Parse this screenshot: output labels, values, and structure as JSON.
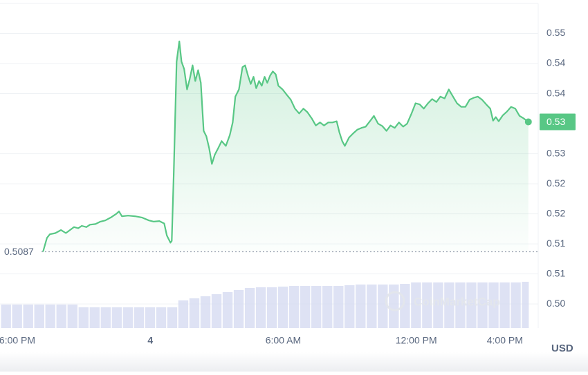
{
  "chart_data": {
    "type": "line",
    "currency": "USD",
    "watermark": "CoinMarketCap",
    "color": "#58c785",
    "current_label": "0.53",
    "reference_value": 0.5087,
    "xlim": [
      -6.78,
      17.41
    ],
    "xticks": [
      {
        "value": -6,
        "label": "6:00 PM"
      },
      {
        "value": 0,
        "label": "4"
      },
      {
        "value": 6,
        "label": "6:00 AM"
      },
      {
        "value": 12,
        "label": "12:00 PM"
      },
      {
        "value": 16,
        "label": "4:00 PM"
      }
    ],
    "ylim": [
      0.496,
      0.55
    ],
    "yticks": [
      {
        "value": 0.5,
        "label": "0.50"
      },
      {
        "value": 0.505,
        "label": "0.51"
      },
      {
        "value": 0.51,
        "label": "0.51"
      },
      {
        "value": 0.515,
        "label": "0.52"
      },
      {
        "value": 0.52,
        "label": "0.52"
      },
      {
        "value": 0.525,
        "label": "0.53"
      },
      {
        "value": 0.535,
        "label": "0.54"
      },
      {
        "value": 0.54,
        "label": "0.54"
      },
      {
        "value": 0.545,
        "label": "0.55"
      }
    ],
    "x": [
      -4.84,
      -4.66,
      -4.53,
      -4.28,
      -4.03,
      -3.81,
      -3.66,
      -3.44,
      -3.25,
      -3.09,
      -2.88,
      -2.72,
      -2.47,
      -2.25,
      -2.03,
      -1.78,
      -1.53,
      -1.41,
      -1.28,
      -1.0,
      -0.69,
      -0.38,
      -0.06,
      0.16,
      0.41,
      0.63,
      0.75,
      0.91,
      0.97,
      1.06,
      1.19,
      1.31,
      1.41,
      1.53,
      1.66,
      1.78,
      1.91,
      2.03,
      2.16,
      2.28,
      2.41,
      2.53,
      2.66,
      2.78,
      2.91,
      3.06,
      3.22,
      3.41,
      3.59,
      3.72,
      3.84,
      4.0,
      4.16,
      4.28,
      4.41,
      4.53,
      4.66,
      4.78,
      4.91,
      5.03,
      5.16,
      5.28,
      5.41,
      5.53,
      5.66,
      5.78,
      5.97,
      6.16,
      6.34,
      6.53,
      6.72,
      6.91,
      7.09,
      7.28,
      7.47,
      7.66,
      7.84,
      8.03,
      8.22,
      8.41,
      8.53,
      8.66,
      8.78,
      8.97,
      9.16,
      9.34,
      9.53,
      9.72,
      9.91,
      10.09,
      10.28,
      10.47,
      10.66,
      10.84,
      11.03,
      11.22,
      11.41,
      11.59,
      11.78,
      11.97,
      12.16,
      12.34,
      12.53,
      12.72,
      12.91,
      13.09,
      13.28,
      13.47,
      13.66,
      13.84,
      14.03,
      14.22,
      14.41,
      14.59,
      14.78,
      14.97,
      15.16,
      15.34,
      15.47,
      15.59,
      15.72,
      15.91,
      16.09,
      16.28,
      16.47,
      16.66,
      16.84,
      17.06
    ],
    "values": [
      0.5087,
      0.511,
      0.5116,
      0.5118,
      0.5123,
      0.5118,
      0.5122,
      0.5128,
      0.5126,
      0.513,
      0.5128,
      0.5132,
      0.5133,
      0.5137,
      0.5139,
      0.5144,
      0.515,
      0.5154,
      0.5146,
      0.5147,
      0.5146,
      0.5144,
      0.5139,
      0.5137,
      0.5138,
      0.5134,
      0.5114,
      0.5102,
      0.5105,
      0.5219,
      0.5403,
      0.5437,
      0.5403,
      0.5391,
      0.5357,
      0.5374,
      0.5397,
      0.5371,
      0.5389,
      0.5368,
      0.5288,
      0.5279,
      0.5259,
      0.5233,
      0.5248,
      0.5259,
      0.5271,
      0.5263,
      0.5281,
      0.5302,
      0.5345,
      0.5357,
      0.5394,
      0.5397,
      0.538,
      0.5366,
      0.5378,
      0.5359,
      0.5371,
      0.5363,
      0.5378,
      0.5368,
      0.538,
      0.5387,
      0.5382,
      0.5363,
      0.5357,
      0.5348,
      0.534,
      0.5325,
      0.5317,
      0.5325,
      0.5319,
      0.5309,
      0.5297,
      0.5302,
      0.5297,
      0.5302,
      0.5302,
      0.5304,
      0.5286,
      0.5271,
      0.5263,
      0.5277,
      0.5284,
      0.529,
      0.5293,
      0.5295,
      0.5304,
      0.5313,
      0.53,
      0.5296,
      0.5288,
      0.5297,
      0.5293,
      0.5302,
      0.5295,
      0.53,
      0.5316,
      0.5334,
      0.5332,
      0.5325,
      0.5334,
      0.5341,
      0.5336,
      0.5345,
      0.5342,
      0.5357,
      0.5345,
      0.5334,
      0.5328,
      0.5328,
      0.534,
      0.5343,
      0.5345,
      0.534,
      0.5332,
      0.5325,
      0.5305,
      0.5311,
      0.5304,
      0.5314,
      0.532,
      0.5328,
      0.5325,
      0.5313,
      0.5309,
      0.5303
    ],
    "volume": {
      "color": "#d3d8f0",
      "ylim": [
        0,
        100
      ],
      "x": [
        -6.5,
        -6,
        -5.5,
        -5,
        -4.5,
        -4,
        -3.5,
        -3,
        -2.5,
        -2,
        -1.5,
        -1,
        -0.5,
        0,
        0.5,
        1,
        1.5,
        2,
        2.5,
        3,
        3.5,
        4,
        4.5,
        5,
        5.5,
        6,
        6.5,
        7,
        7.5,
        8,
        8.5,
        9,
        9.5,
        10,
        10.5,
        11,
        11.5,
        12,
        12.5,
        13,
        13.5,
        14,
        14.5,
        15,
        15.5,
        16,
        16.5,
        17
      ],
      "values": [
        34,
        34,
        34,
        34,
        34,
        34,
        34,
        30,
        30,
        30,
        30,
        30,
        30,
        30,
        30,
        30,
        40,
        43,
        46,
        49,
        52,
        55,
        58,
        59,
        59,
        60,
        61,
        61,
        61,
        61,
        61,
        62,
        63,
        63,
        63,
        63,
        64,
        66,
        66,
        66,
        66,
        66,
        66,
        66,
        66,
        66,
        66,
        67
      ]
    }
  }
}
